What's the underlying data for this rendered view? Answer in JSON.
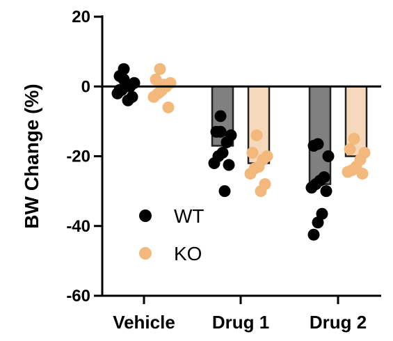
{
  "chart_data": {
    "type": "bar",
    "ylabel": "BW Change (%)",
    "ylim": [
      -60,
      20
    ],
    "yticks": [
      "20",
      "0",
      "-20",
      "-40",
      "-60"
    ],
    "categories": [
      "Vehicle",
      "Drug 1",
      "Drug 2"
    ],
    "grid": false,
    "legend_position": "lower-left",
    "series": [
      {
        "name": "WT",
        "color": "#000000",
        "bar_color": "#808080",
        "means": [
          0,
          -17,
          -28
        ],
        "points": [
          [
            5,
            3,
            1,
            0,
            0,
            -1,
            -2,
            -3,
            -4,
            2,
            -1
          ],
          [
            -8.5,
            -13,
            -14,
            -16,
            -19,
            -20,
            -22,
            -22.5,
            -30,
            -13
          ],
          [
            -16.5,
            -17,
            -20,
            -26,
            -27,
            -28,
            -29,
            -30,
            -36.5,
            -39,
            -42.5
          ]
        ]
      },
      {
        "name": "KO",
        "color": "#F2B87C",
        "bar_color": "#F6D9BA",
        "means": [
          0,
          -22,
          -20
        ],
        "points": [
          [
            5,
            2,
            1,
            0,
            -1,
            -2,
            -3,
            -6,
            0.5,
            -1.5
          ],
          [
            -14,
            -19,
            -20,
            -21,
            -23,
            -23.5,
            -25,
            -28,
            -30
          ],
          [
            -15,
            -18,
            -19,
            -21,
            -23,
            -24,
            -24.5,
            -25
          ]
        ]
      }
    ]
  }
}
